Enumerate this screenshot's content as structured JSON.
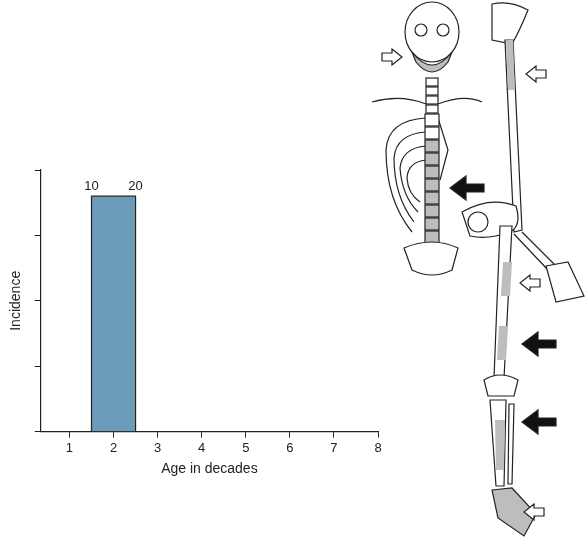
{
  "chart_data": {
    "type": "histogram",
    "x_label": "Age in decades",
    "y_label": "Incidence",
    "bins": [
      1.5,
      2.5
    ],
    "values": [
      3.6
    ],
    "color": "#6c9bb9",
    "xlim": [
      0.35,
      8
    ],
    "xticks": [
      1,
      2,
      3,
      4,
      5,
      6,
      7,
      8
    ],
    "ylim": [
      0,
      4
    ],
    "yticks": [
      0,
      1,
      2,
      3,
      4
    ],
    "tick_labels": "x",
    "grid": false,
    "annotations": [
      {
        "text": "10",
        "x": 1.5
      },
      {
        "text": "20",
        "x": 2.5
      }
    ]
  }
}
